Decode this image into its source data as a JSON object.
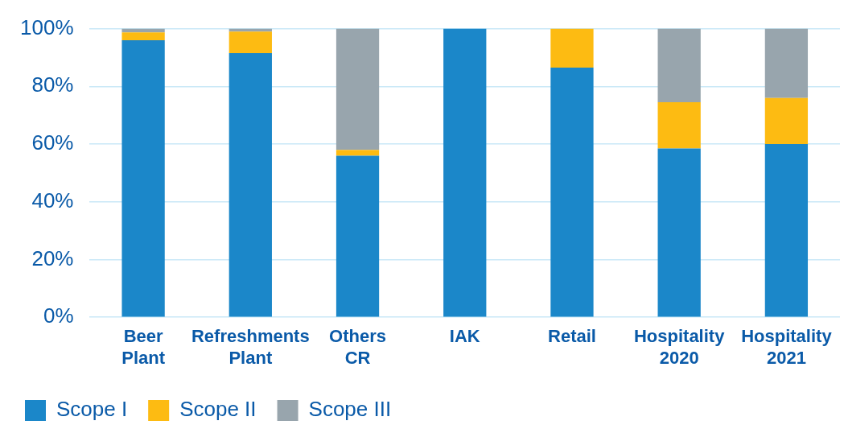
{
  "chart_data": {
    "type": "bar",
    "stacked": true,
    "categories": [
      "Beer Plant",
      "Refreshments Plant",
      "Others CR",
      "IAK",
      "Retail",
      "Hospitality 2020",
      "Hospitality 2021"
    ],
    "series": [
      {
        "name": "Scope I",
        "color": "#1b87c9",
        "values": [
          96,
          91.5,
          56,
          100,
          86.5,
          58.5,
          60
        ]
      },
      {
        "name": "Scope II",
        "color": "#fdbb12",
        "values": [
          2.7,
          7.5,
          2,
          0,
          13.5,
          16,
          16
        ]
      },
      {
        "name": "Scope III",
        "color": "#98a5ad",
        "values": [
          1.3,
          1,
          42,
          0,
          0,
          25.5,
          24
        ]
      }
    ],
    "ylim": [
      0,
      100
    ],
    "yticks": [
      {
        "value": 0,
        "label": "0%"
      },
      {
        "value": 20,
        "label": "20%"
      },
      {
        "value": 40,
        "label": "40%"
      },
      {
        "value": 60,
        "label": "60%"
      },
      {
        "value": 80,
        "label": "80%"
      },
      {
        "value": 100,
        "label": "100%"
      }
    ],
    "grid": "y",
    "legend": "bottom left"
  }
}
